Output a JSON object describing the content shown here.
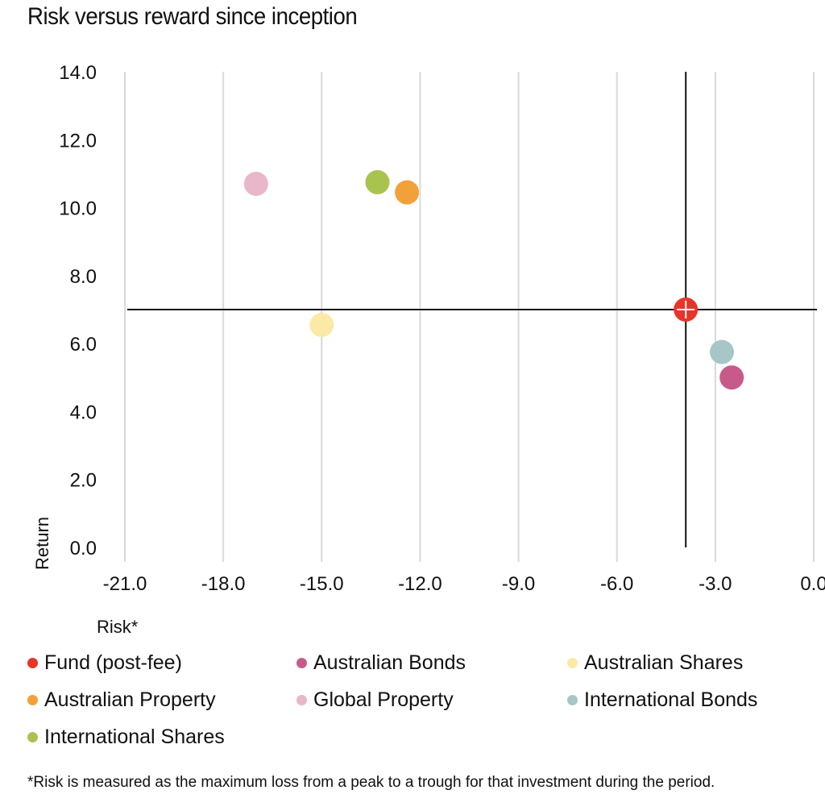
{
  "chart_data": {
    "type": "scatter",
    "title": "Risk versus reward since inception",
    "xlabel": "Risk*",
    "ylabel": "Return",
    "xlim": [
      -21.0,
      0.0
    ],
    "ylim": [
      0.0,
      14.0
    ],
    "x_ticks": [
      "-21.0",
      "-18.0",
      "-15.0",
      "-12.0",
      "-9.0",
      "-6.0",
      "-3.0",
      "0.0"
    ],
    "y_ticks": [
      "0.0",
      "2.0",
      "4.0",
      "6.0",
      "8.0",
      "10.0",
      "12.0",
      "14.0"
    ],
    "x_tick_values": [
      -21,
      -18,
      -15,
      -12,
      -9,
      -6,
      -3,
      0
    ],
    "y_tick_values": [
      0,
      2,
      4,
      6,
      8,
      10,
      12,
      14
    ],
    "grid": "vertical",
    "reference_lines": {
      "x": -3.9,
      "y": 7.0
    },
    "legend_position": "bottom",
    "series": [
      {
        "name": "Fund (post-fee)",
        "color": "#e8352a",
        "x": -3.9,
        "y": 7.0,
        "marker": "crosshair"
      },
      {
        "name": "Australian Bonds",
        "color": "#c85a8a",
        "x": -2.5,
        "y": 5.0
      },
      {
        "name": "Australian Shares",
        "color": "#fbeaa6",
        "x": -15.0,
        "y": 6.55
      },
      {
        "name": "Australian Property",
        "color": "#f2a13a",
        "x": -12.4,
        "y": 10.45
      },
      {
        "name": "Global Property",
        "color": "#e8b7c9",
        "x": -17.0,
        "y": 10.7
      },
      {
        "name": "International Bonds",
        "color": "#a7c6c8",
        "x": -2.8,
        "y": 5.75
      },
      {
        "name": "International Shares",
        "color": "#a8c44e",
        "x": -13.3,
        "y": 10.75
      }
    ]
  },
  "footnote": "*Risk is measured as the maximum loss from a peak to a trough for that investment during the period."
}
